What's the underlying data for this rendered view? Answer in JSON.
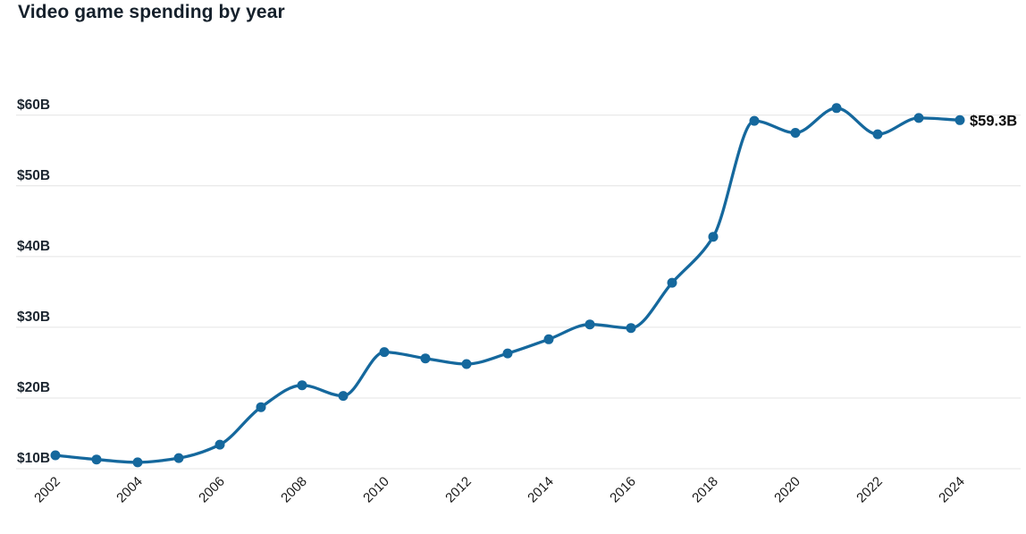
{
  "title": "Video game spending by year",
  "colors": {
    "line": "#15689d",
    "point": "#15689d",
    "grid": "#e4e4e4",
    "title_text": "#15202b",
    "y_axis_text": "#1c2630",
    "x_axis_text": "#1a1a1a",
    "annotation_text": "#0d0d0d",
    "background": "#ffffff"
  },
  "chart_data": {
    "type": "line",
    "title": "Video game spending by year",
    "xlabel": "",
    "ylabel": "",
    "x": [
      2002,
      2003,
      2004,
      2005,
      2006,
      2007,
      2008,
      2009,
      2010,
      2011,
      2012,
      2013,
      2014,
      2015,
      2016,
      2017,
      2018,
      2019,
      2020,
      2021,
      2022,
      2023,
      2024
    ],
    "series": [
      {
        "name": "Video game spending ($B)",
        "values": [
          11.9,
          11.3,
          10.9,
          11.5,
          13.4,
          18.7,
          21.8,
          20.3,
          26.5,
          25.6,
          24.8,
          26.3,
          28.3,
          30.4,
          29.9,
          36.3,
          42.8,
          59.2,
          57.5,
          61.0,
          57.3,
          59.6,
          59.3
        ]
      }
    ],
    "xlim": [
      2002,
      2024
    ],
    "ylim": [
      8.5,
      63
    ],
    "grid": "horizontal",
    "legend_position": "none",
    "y_ticks": [
      {
        "value": 60,
        "label": "$60B"
      },
      {
        "value": 50,
        "label": "$50B"
      },
      {
        "value": 40,
        "label": "$40B"
      },
      {
        "value": 30,
        "label": "$30B"
      },
      {
        "value": 20,
        "label": "$20B"
      },
      {
        "value": 10,
        "label": "$10B"
      }
    ],
    "x_ticks": [
      {
        "value": 2002,
        "label": "2002"
      },
      {
        "value": 2004,
        "label": "2004"
      },
      {
        "value": 2006,
        "label": "2006"
      },
      {
        "value": 2008,
        "label": "2008"
      },
      {
        "value": 2010,
        "label": "2010"
      },
      {
        "value": 2012,
        "label": "2012"
      },
      {
        "value": 2014,
        "label": "2014"
      },
      {
        "value": 2016,
        "label": "2016"
      },
      {
        "value": 2018,
        "label": "2018"
      },
      {
        "value": 2020,
        "label": "2020"
      },
      {
        "value": 2022,
        "label": "2022"
      },
      {
        "value": 2024,
        "label": "2024"
      }
    ],
    "annotation": {
      "x": 2024,
      "y": 59.3,
      "label": "$59.3B"
    }
  }
}
